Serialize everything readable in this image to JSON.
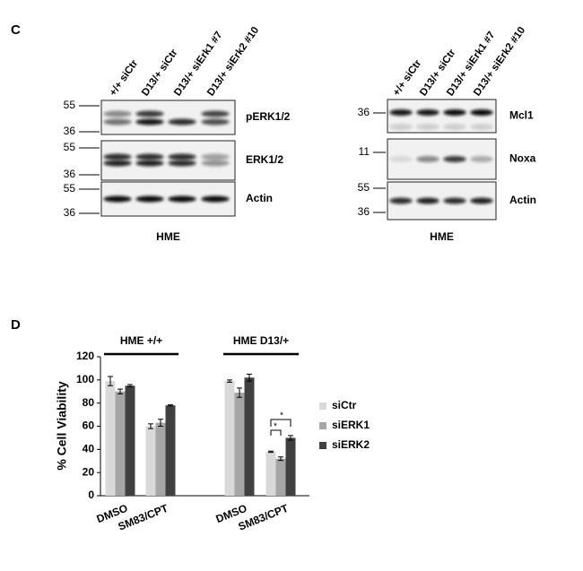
{
  "panel_c": {
    "label": "C",
    "blots": [
      {
        "lanes": [
          "+/+ siCtr",
          "D13/+ siCtr",
          "D13/+ siErk1 #7",
          "D13/+ siErk2 #10"
        ],
        "rows": [
          {
            "name": "pERK1/2",
            "markers": [
              55,
              36
            ]
          },
          {
            "name": "ERK1/2",
            "markers": [
              55,
              36
            ]
          },
          {
            "name": "Actin",
            "markers": [
              55,
              36
            ]
          }
        ],
        "cell_line": "HME"
      },
      {
        "lanes": [
          "+/+ siCtr",
          "D13/+ siCtr",
          "D13/+ siErk1 #7",
          "D13/+ siErk2 #10"
        ],
        "rows": [
          {
            "name": "Mcl1",
            "markers": [
              36
            ]
          },
          {
            "name": "Noxa",
            "markers": [
              11
            ]
          },
          {
            "name": "Actin",
            "markers": [
              55,
              36
            ]
          }
        ],
        "cell_line": "HME"
      }
    ]
  },
  "chart_data": {
    "type": "bar",
    "panel_label": "D",
    "categories": [
      "DMSO",
      "SM83/CPT",
      "DMSO",
      "SM83/CPT"
    ],
    "group_labels": [
      "HME +/+",
      "HME D13/+"
    ],
    "y_label": "% Cell Viability",
    "series": [
      {
        "name": "siCtr",
        "color": "#d9d9d9",
        "values": [
          99,
          60,
          99,
          38
        ],
        "errors": [
          4,
          2,
          1,
          0.5
        ]
      },
      {
        "name": "siERK1",
        "color": "#a6a6a6",
        "values": [
          90,
          63,
          89,
          32
        ],
        "errors": [
          2,
          3,
          4,
          1.5
        ]
      },
      {
        "name": "siERK2",
        "color": "#404040",
        "values": [
          95,
          78,
          102,
          50
        ],
        "errors": [
          1,
          0.5,
          3,
          2
        ]
      }
    ],
    "annotations": [
      "*",
      "*"
    ],
    "ylim": [
      0,
      120
    ],
    "yticks": [
      0,
      20,
      40,
      60,
      80,
      100,
      120
    ],
    "grid": false
  }
}
